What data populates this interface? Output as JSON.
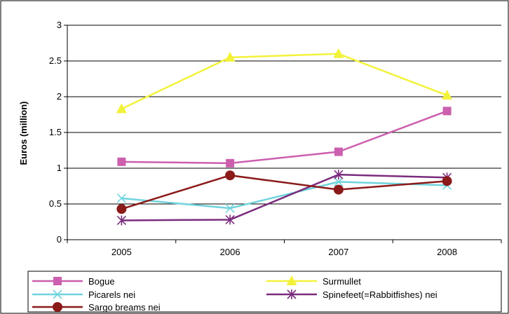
{
  "chart_data": {
    "type": "line",
    "title": "",
    "xlabel": "",
    "ylabel": "Euros (million)",
    "categories": [
      "2005",
      "2006",
      "2007",
      "2008"
    ],
    "ylim": [
      0,
      3
    ],
    "yticks": [
      "0",
      "0.5",
      "1",
      "1.5",
      "2",
      "2.5",
      "3"
    ],
    "grid": "horizontal",
    "legend_position": "bottom",
    "series": [
      {
        "name": "Bogue",
        "values": [
          1.09,
          1.07,
          1.23,
          1.8
        ],
        "color": "#cc5fae",
        "marker": "square"
      },
      {
        "name": "Surmullet",
        "values": [
          1.83,
          2.55,
          2.6,
          2.02
        ],
        "color": "#f2f23a",
        "marker": "triangle"
      },
      {
        "name": "Picarels nei",
        "values": [
          0.58,
          0.44,
          0.81,
          0.76
        ],
        "color": "#6fd4dd",
        "marker": "x"
      },
      {
        "name": "Spinefeet(=Rabbitfishes) nei",
        "values": [
          0.27,
          0.28,
          0.91,
          0.87
        ],
        "color": "#7a2c7e",
        "marker": "star"
      },
      {
        "name": "Sargo breams nei",
        "values": [
          0.43,
          0.9,
          0.7,
          0.82
        ],
        "color": "#8b1a1a",
        "marker": "circle"
      }
    ]
  }
}
